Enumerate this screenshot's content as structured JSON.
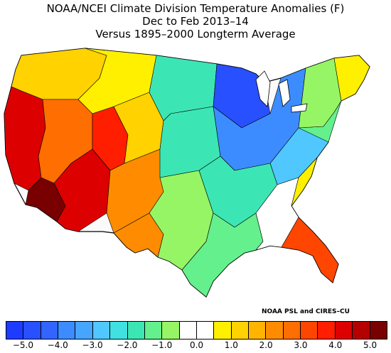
{
  "header": {
    "line1": "NOAA/NCEI Climate Division Temperature Anomalies (F)",
    "line2": "Dec to Feb 2013–14",
    "line3": "Versus 1895–2000 Longterm Average"
  },
  "credit": "NOAA PSL and CIRES–CU",
  "legend": {
    "colors": [
      "#1e3cff",
      "#2850ff",
      "#3264ff",
      "#3c8cff",
      "#46a5ff",
      "#50c8ff",
      "#41e1e1",
      "#3ce6b4",
      "#64f08c",
      "#96f564",
      "#ffffff",
      "#ffffff",
      "#fff000",
      "#ffd200",
      "#ffb400",
      "#ff8c00",
      "#ff6e00",
      "#ff4600",
      "#ff1e00",
      "#dc0000",
      "#b40000",
      "#780000"
    ],
    "ticks": [
      "−5.0",
      "−4.0",
      "−3.0",
      "−2.0",
      "−1.0",
      "0.0",
      "1.0",
      "2.0",
      "3.0",
      "4.0",
      "5.0"
    ]
  },
  "map_regions": [
    {
      "name": "pacific-northwest",
      "anomaly": 1.0
    },
    {
      "name": "california-coast",
      "anomaly": 4.0
    },
    {
      "name": "southern-california",
      "anomaly": 5.0
    },
    {
      "name": "great-basin",
      "anomaly": 2.5
    },
    {
      "name": "southwest",
      "anomaly": 3.5
    },
    {
      "name": "arizona",
      "anomaly": 4.0
    },
    {
      "name": "rockies-north",
      "anomaly": 0.5
    },
    {
      "name": "colorado-utah",
      "anomaly": 1.0
    },
    {
      "name": "new-mexico",
      "anomaly": 2.0
    },
    {
      "name": "west-texas",
      "anomaly": 2.0
    },
    {
      "name": "northern-plains",
      "anomaly": -2.0
    },
    {
      "name": "central-plains",
      "anomaly": -2.0
    },
    {
      "name": "southern-plains",
      "anomaly": -1.0
    },
    {
      "name": "upper-midwest",
      "anomaly": -5.0
    },
    {
      "name": "midwest",
      "anomaly": -4.0
    },
    {
      "name": "ohio-valley",
      "anomaly": -3.0
    },
    {
      "name": "deep-south",
      "anomaly": -2.0
    },
    {
      "name": "gulf-coast",
      "anomaly": -1.5
    },
    {
      "name": "southeast",
      "anomaly": -0.5
    },
    {
      "name": "georgia-carolinas",
      "anomaly": 0.5
    },
    {
      "name": "florida",
      "anomaly": 3.0
    },
    {
      "name": "mid-atlantic",
      "anomaly": -1.5
    },
    {
      "name": "northeast",
      "anomaly": -1.0
    },
    {
      "name": "new-england",
      "anomaly": 0.5
    }
  ]
}
